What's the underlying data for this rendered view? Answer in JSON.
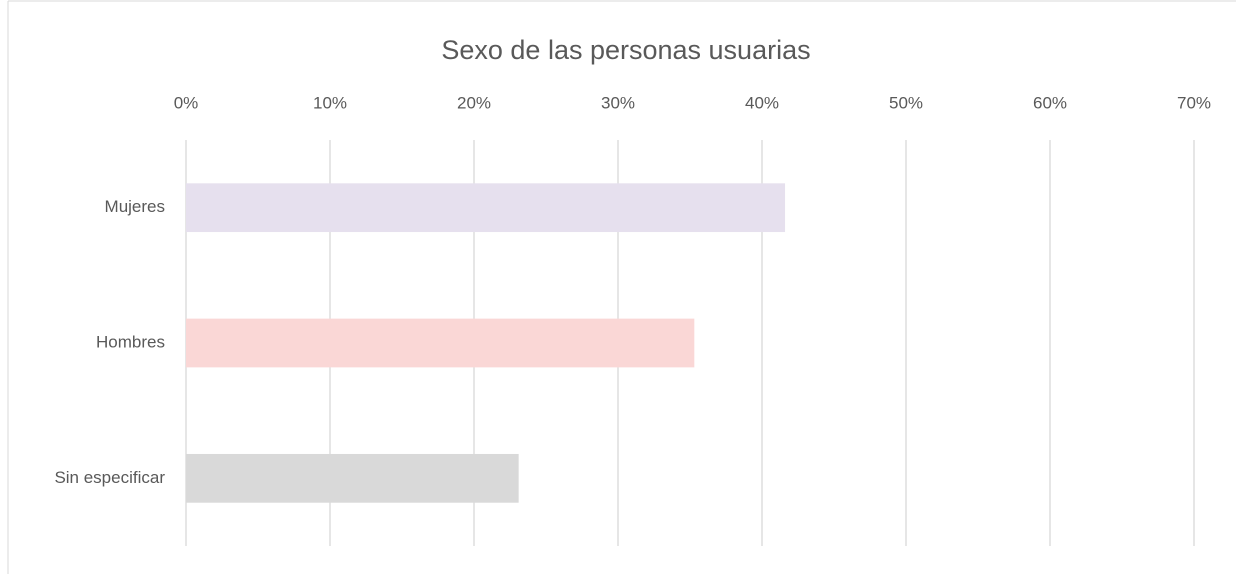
{
  "chart_data": {
    "type": "hbar",
    "title": "Sexo de las personas usuarias",
    "categories": [
      "Mujeres",
      "Hombres",
      "Sin especificar"
    ],
    "values": [
      41.6,
      35.3,
      23.1
    ],
    "colors": [
      "#e6e0ee",
      "#fad7d6",
      "#d9d9d9"
    ],
    "xlim": [
      0,
      70
    ],
    "xticks": [
      {
        "value": 0,
        "label": "0%"
      },
      {
        "value": 10,
        "label": "10%"
      },
      {
        "value": 20,
        "label": "20%"
      },
      {
        "value": 30,
        "label": "30%"
      },
      {
        "value": 40,
        "label": "40%"
      },
      {
        "value": 50,
        "label": "50%"
      },
      {
        "value": 60,
        "label": "60%"
      },
      {
        "value": 70,
        "label": "70%"
      }
    ],
    "grid": true
  }
}
